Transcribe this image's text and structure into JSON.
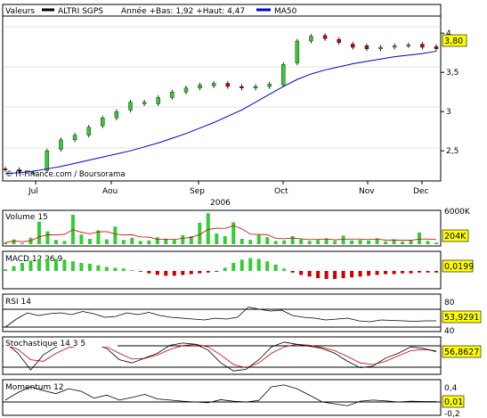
{
  "header": {
    "valeurs_label": "Valeurs",
    "symbol": "ALTRI SGPS",
    "range_text": "Année +Bas: 1,92 +Haut: 4,47",
    "ma_label": "MA50",
    "copyright": "© IT-Finance.com / Boursorama"
  },
  "colors": {
    "up": "#33cc33",
    "down": "#cc0000",
    "ma": "#0000cc",
    "oscillator": "#000000",
    "signal": "#cc0000",
    "value_tag": "#ffff00",
    "volume_ma": "#cc0000"
  },
  "x_axis": {
    "months": [
      "Jul",
      "Aou",
      "Sep",
      "Oct",
      "Nov",
      "Dec"
    ],
    "year": "2006"
  },
  "chart_data": [
    {
      "type": "candlestick",
      "title": "ALTRI SGPS",
      "y_ticks": [
        "2,5",
        "3",
        "3,5",
        "4"
      ],
      "ylim": [
        2.15,
        4.15
      ],
      "current_value": "3,80",
      "series": [
        {
          "name": "MA50",
          "values": [
            2.21,
            2.22,
            2.24,
            2.27,
            2.3,
            2.34,
            2.38,
            2.42,
            2.46,
            2.5,
            2.55,
            2.6,
            2.66,
            2.72,
            2.79,
            2.86,
            2.94,
            3.02,
            3.12,
            3.22,
            3.32,
            3.41,
            3.48,
            3.53,
            3.57,
            3.61,
            3.64,
            3.67,
            3.7,
            3.72,
            3.74,
            3.77
          ]
        },
        {
          "name": "close",
          "values": [
            2.26,
            2.24,
            2.22,
            2.5,
            2.64,
            2.7,
            2.8,
            2.92,
            3.0,
            3.12,
            3.12,
            3.18,
            3.25,
            3.3,
            3.34,
            3.36,
            3.32,
            3.3,
            3.32,
            3.35,
            3.6,
            3.9,
            3.96,
            3.93,
            3.88,
            3.82,
            3.8,
            3.82,
            3.84,
            3.85,
            3.82,
            3.8
          ]
        },
        {
          "name": "open",
          "values": [
            2.27,
            2.26,
            2.22,
            2.25,
            2.52,
            2.64,
            2.7,
            2.82,
            2.92,
            3.02,
            3.1,
            3.1,
            3.18,
            3.25,
            3.3,
            3.33,
            3.36,
            3.32,
            3.3,
            3.32,
            3.34,
            3.62,
            3.9,
            3.97,
            3.92,
            3.86,
            3.84,
            3.8,
            3.82,
            3.84,
            3.86,
            3.83
          ]
        }
      ]
    },
    {
      "type": "bar",
      "title": "Volume 15",
      "y_ticks": [
        "6000K"
      ],
      "ylim": [
        0,
        6000
      ],
      "current_value": "204K",
      "series": [
        {
          "name": "Volume 15",
          "values": [
            300,
            900,
            200,
            1200,
            4200,
            2400,
            800,
            600,
            5500,
            1800,
            1000,
            2600,
            900,
            3300,
            800,
            1200,
            600,
            700,
            1300,
            1000,
            800,
            1700,
            1500,
            4000,
            5800,
            2000,
            1500,
            4100,
            1000,
            800,
            1700,
            1300,
            600,
            700,
            1500,
            900,
            600,
            800,
            1100,
            600,
            1600,
            700,
            800,
            700,
            1100,
            500,
            900,
            500,
            700,
            2200,
            600,
            300
          ]
        }
      ]
    },
    {
      "type": "bar",
      "title": "MACD 12 26 9",
      "current_value": "0,0199",
      "series": [
        {
          "name": "MACD 12 26 9",
          "values": [
            0.02,
            0.06,
            0.1,
            0.13,
            0.15,
            0.16,
            0.15,
            0.14,
            0.12,
            0.1,
            0.09,
            0.07,
            0.05,
            0.04,
            0.03,
            0.01,
            -0.01,
            -0.03,
            -0.05,
            -0.06,
            -0.06,
            -0.05,
            -0.04,
            -0.03,
            -0.02,
            -0.01,
            0.04,
            0.1,
            0.14,
            0.16,
            0.15,
            0.12,
            0.08,
            0.03,
            -0.02,
            -0.05,
            -0.07,
            -0.09,
            -0.1,
            -0.1,
            -0.09,
            -0.08,
            -0.07,
            -0.06,
            -0.05,
            -0.04,
            -0.04,
            -0.03,
            -0.03,
            -0.02,
            -0.02,
            -0.02
          ]
        }
      ]
    },
    {
      "type": "line",
      "title": "RSI 14",
      "y_ticks": [
        "80",
        "40"
      ],
      "ylim": [
        40,
        100
      ],
      "current_value": "53,9291",
      "series": [
        {
          "name": "RSI 14",
          "values": [
            40,
            58,
            72,
            66,
            70,
            72,
            68,
            75,
            70,
            62,
            64,
            72,
            68,
            73,
            66,
            62,
            60,
            58,
            56,
            60,
            58,
            62,
            85,
            80,
            76,
            78,
            66,
            62,
            60,
            56,
            58,
            60,
            54,
            52,
            56,
            55,
            54,
            53,
            54,
            54
          ]
        }
      ]
    },
    {
      "type": "line",
      "title": "Stochastique 14 3 5",
      "current_value": "56,8627",
      "series": [
        {
          "name": "%K",
          "values": [
            92,
            60,
            8,
            55,
            80,
            88,
            82,
            90,
            75,
            40,
            30,
            45,
            60,
            85,
            92,
            88,
            70,
            30,
            5,
            10,
            40,
            80,
            95,
            88,
            82,
            75,
            60,
            35,
            15,
            20,
            45,
            60,
            80,
            75,
            65
          ]
        },
        {
          "name": "%D",
          "values": [
            88,
            72,
            40,
            35,
            60,
            78,
            84,
            86,
            80,
            60,
            42,
            44,
            55,
            72,
            84,
            88,
            80,
            55,
            25,
            15,
            30,
            60,
            80,
            88,
            85,
            78,
            68,
            50,
            30,
            25,
            35,
            52,
            68,
            72,
            68
          ]
        }
      ]
    },
    {
      "type": "line",
      "title": "Momentum 12",
      "y_ticks": [
        "0,4",
        "0",
        "-0,2"
      ],
      "ylim": [
        -0.22,
        0.48
      ],
      "current_value": "0,01",
      "series": [
        {
          "name": "Momentum 12",
          "values": [
            0.05,
            0.25,
            0.4,
            0.3,
            0.22,
            0.35,
            0.28,
            0.1,
            0.18,
            0.05,
            0.12,
            0.2,
            0.08,
            0.05,
            0.02,
            0.0,
            -0.02,
            0.06,
            0.02,
            0.0,
            0.04,
            0.4,
            0.45,
            0.35,
            0.18,
            0.0,
            -0.05,
            -0.1,
            0.02,
            0.05,
            0.03,
            0.0,
            0.02,
            0.01,
            0.01
          ]
        }
      ]
    }
  ]
}
